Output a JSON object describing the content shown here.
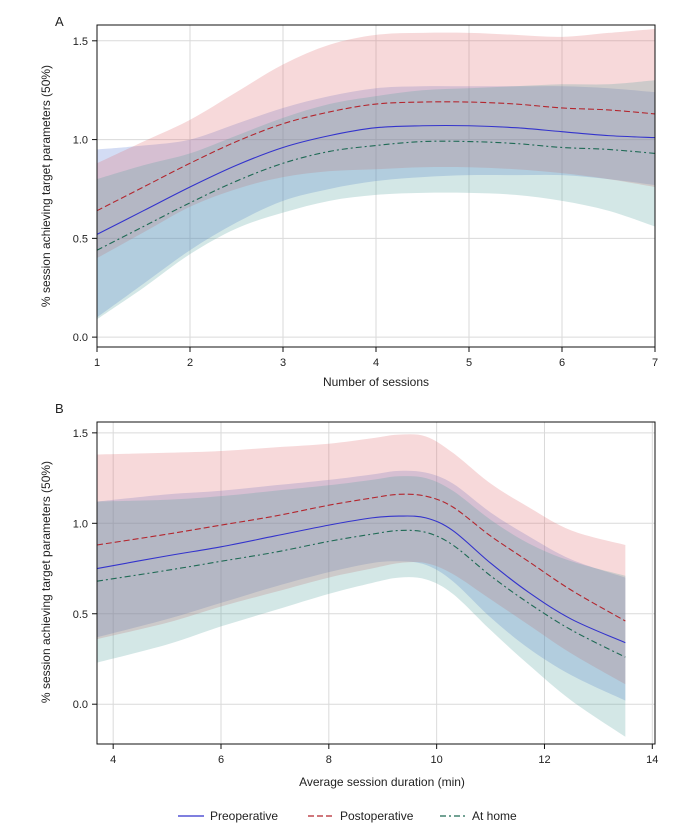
{
  "chart_data": [
    {
      "type": "line",
      "panel_label": "A",
      "xlabel": "Number of sessions",
      "ylabel": "% session achieving target parameters (50%)",
      "xlim": [
        1,
        7
      ],
      "ylim": [
        -0.05,
        1.58
      ],
      "xticks": [
        1,
        2,
        3,
        4,
        5,
        6,
        7
      ],
      "xtick_labels": [
        "1",
        "2",
        "3",
        "4",
        "5",
        "6",
        "7"
      ],
      "yticks": [
        0,
        0.5,
        1,
        1.5
      ],
      "ytick_labels": [
        "0.0",
        "0.5",
        "1.0",
        "1.5"
      ],
      "grid": true,
      "x": [
        1,
        1.5,
        2,
        2.5,
        3,
        3.5,
        4,
        4.5,
        5,
        5.5,
        6,
        6.5,
        7
      ],
      "series": [
        {
          "name": "Preoperative",
          "values": [
            0.52,
            0.64,
            0.76,
            0.87,
            0.96,
            1.02,
            1.06,
            1.07,
            1.07,
            1.06,
            1.04,
            1.02,
            1.01
          ],
          "lower": [
            0.1,
            0.27,
            0.44,
            0.58,
            0.69,
            0.75,
            0.79,
            0.81,
            0.82,
            0.82,
            0.82,
            0.8,
            0.77
          ],
          "upper": [
            0.95,
            0.97,
            1.0,
            1.08,
            1.16,
            1.22,
            1.26,
            1.27,
            1.27,
            1.27,
            1.27,
            1.26,
            1.24
          ]
        },
        {
          "name": "Postoperative",
          "values": [
            0.64,
            0.76,
            0.88,
            0.99,
            1.08,
            1.14,
            1.18,
            1.19,
            1.19,
            1.18,
            1.16,
            1.15,
            1.13
          ],
          "lower": [
            0.4,
            0.53,
            0.66,
            0.75,
            0.81,
            0.84,
            0.85,
            0.86,
            0.86,
            0.85,
            0.83,
            0.8,
            0.76
          ],
          "upper": [
            0.88,
            0.99,
            1.1,
            1.24,
            1.38,
            1.48,
            1.53,
            1.54,
            1.54,
            1.53,
            1.52,
            1.54,
            1.56
          ]
        },
        {
          "name": "At home",
          "values": [
            0.44,
            0.56,
            0.68,
            0.79,
            0.88,
            0.94,
            0.97,
            0.99,
            0.99,
            0.98,
            0.96,
            0.95,
            0.93
          ],
          "lower": [
            0.09,
            0.25,
            0.42,
            0.55,
            0.63,
            0.69,
            0.72,
            0.73,
            0.73,
            0.72,
            0.69,
            0.64,
            0.56
          ],
          "upper": [
            0.8,
            0.87,
            0.93,
            1.02,
            1.11,
            1.18,
            1.22,
            1.25,
            1.26,
            1.27,
            1.28,
            1.28,
            1.3
          ]
        }
      ]
    },
    {
      "type": "line",
      "panel_label": "B",
      "xlabel": "Average session duration (min)",
      "ylabel": "% session achieving target parameters (50%)",
      "xlim": [
        3.7,
        14.05
      ],
      "ylim": [
        -0.22,
        1.56
      ],
      "xticks": [
        4,
        6,
        8,
        10,
        12,
        14
      ],
      "xtick_labels": [
        "4",
        "6",
        "8",
        "10",
        "12",
        "14"
      ],
      "yticks": [
        0,
        0.5,
        1,
        1.5
      ],
      "ytick_labels": [
        "0.0",
        "0.5",
        "1.0",
        "1.5"
      ],
      "grid": true,
      "x": [
        3.7,
        5,
        6,
        7,
        8,
        8.8,
        9.3,
        9.8,
        10.3,
        11,
        11.7,
        12.5,
        13.5
      ],
      "series": [
        {
          "name": "Preoperative",
          "values": [
            0.75,
            0.82,
            0.87,
            0.93,
            0.99,
            1.03,
            1.04,
            1.03,
            0.96,
            0.78,
            0.62,
            0.47,
            0.34
          ],
          "lower": [
            0.37,
            0.47,
            0.56,
            0.65,
            0.73,
            0.78,
            0.79,
            0.77,
            0.68,
            0.48,
            0.31,
            0.16,
            0.02
          ],
          "upper": [
            1.12,
            1.16,
            1.18,
            1.21,
            1.24,
            1.27,
            1.29,
            1.28,
            1.22,
            1.06,
            0.93,
            0.8,
            0.7
          ]
        },
        {
          "name": "Postoperative",
          "values": [
            0.88,
            0.94,
            0.99,
            1.04,
            1.1,
            1.14,
            1.16,
            1.15,
            1.09,
            0.93,
            0.79,
            0.63,
            0.46
          ],
          "lower": [
            0.36,
            0.45,
            0.54,
            0.62,
            0.7,
            0.75,
            0.78,
            0.78,
            0.72,
            0.58,
            0.44,
            0.28,
            0.11
          ],
          "upper": [
            1.38,
            1.39,
            1.4,
            1.42,
            1.44,
            1.47,
            1.49,
            1.48,
            1.39,
            1.22,
            1.09,
            0.96,
            0.88
          ]
        },
        {
          "name": "At home",
          "values": [
            0.68,
            0.74,
            0.79,
            0.84,
            0.9,
            0.94,
            0.96,
            0.95,
            0.88,
            0.71,
            0.56,
            0.41,
            0.26
          ],
          "lower": [
            0.23,
            0.33,
            0.43,
            0.52,
            0.61,
            0.67,
            0.7,
            0.69,
            0.61,
            0.41,
            0.22,
            0.02,
            -0.18
          ],
          "upper": [
            1.12,
            1.13,
            1.15,
            1.18,
            1.21,
            1.24,
            1.26,
            1.25,
            1.18,
            1.02,
            0.89,
            0.79,
            0.71
          ]
        }
      ]
    }
  ],
  "legend": {
    "position": "bottom",
    "items": [
      {
        "name": "Preoperative",
        "color": "#3333cc",
        "dash": "solid"
      },
      {
        "name": "Postoperative",
        "color": "#b3262e",
        "dash": "dash"
      },
      {
        "name": "At home",
        "color": "#1f6a55",
        "dash": "dashdot"
      }
    ]
  },
  "style": {
    "band_colors": [
      "#4f74d4",
      "#e1696c",
      "#4f9e9a"
    ],
    "band_opacity": 0.25,
    "grid_color": "#dadada"
  }
}
